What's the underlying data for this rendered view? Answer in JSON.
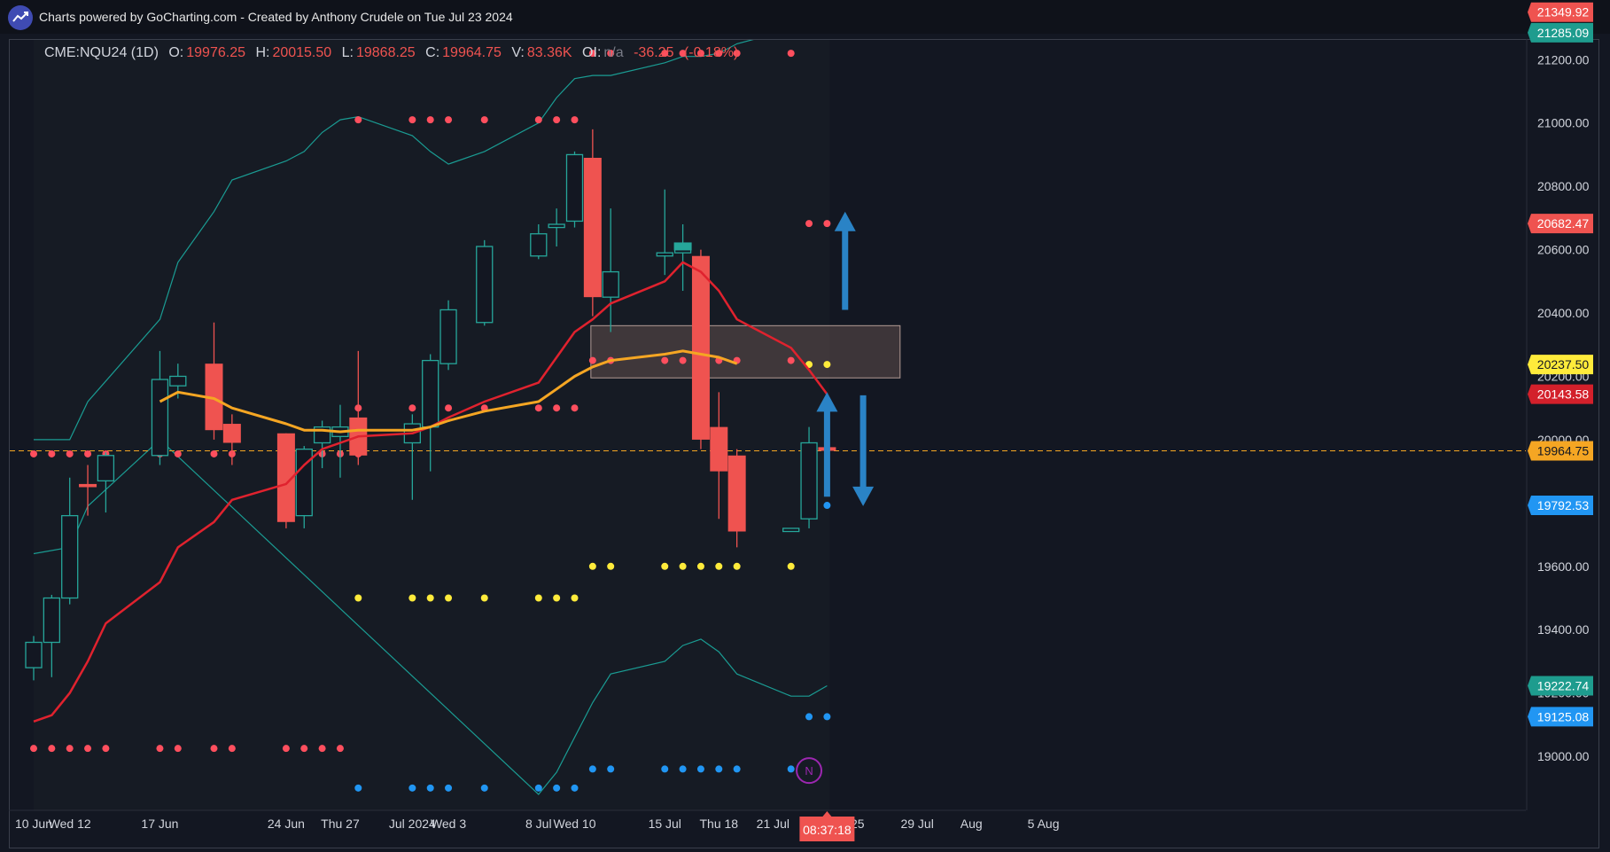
{
  "header": {
    "credit": "Charts powered by GoCharting.com - Created by Anthony Crudele on Tue Jul 23 2024"
  },
  "legend": {
    "symbol": "CME:NQU24 (1D)",
    "o_label": "O:",
    "o": "19976.25",
    "h_label": "H:",
    "h": "20015.50",
    "l_label": "L:",
    "l": "19868.25",
    "c_label": "C:",
    "c": "19964.75",
    "v_label": "V:",
    "v": "83.36K",
    "oi_label": "OI:",
    "oi": "n/a",
    "change": "-36.25",
    "change_pct": "(-0.18%)"
  },
  "colors": {
    "background": "#131722",
    "bull": "#26a69a",
    "bear": "#ef5350",
    "bollinger": "#1a9c93",
    "ma_red": "#e0222e",
    "ma_orange": "#f5a623",
    "dot_red": "#ff4f5e",
    "dot_yellow": "#ffeb3b",
    "dot_blue": "#2196f3",
    "zone": "#8c6d64",
    "arrow": "#2a83c6"
  },
  "chart_data": {
    "type": "candlestick",
    "symbol": "CME:NQU24",
    "interval": "1D",
    "ylim": [
      18880,
      21370
    ],
    "y_ticks": [
      19000,
      19200,
      19400,
      19600,
      19800,
      20000,
      20200,
      20400,
      20600,
      20800,
      21000,
      21200
    ],
    "y_tick_labels": [
      "19000.00",
      "19200.00",
      "19400.00",
      "19600.00",
      "19800.00",
      "20000.00",
      "20200.00",
      "20400.00",
      "20600.00",
      "20800.00",
      "21000.00",
      "21200.00"
    ],
    "x_ticks": [
      {
        "date": "2024-06-10",
        "label": "10 Jun"
      },
      {
        "date": "2024-06-12",
        "label": "Wed 12"
      },
      {
        "date": "2024-06-17",
        "label": "17 Jun"
      },
      {
        "date": "2024-06-24",
        "label": "24 Jun"
      },
      {
        "date": "2024-06-27",
        "label": "Thu 27"
      },
      {
        "date": "2024-07-01",
        "label": "Jul 2024"
      },
      {
        "date": "2024-07-03",
        "label": "Wed 3"
      },
      {
        "date": "2024-07-08",
        "label": "8 Jul"
      },
      {
        "date": "2024-07-10",
        "label": "Wed 10"
      },
      {
        "date": "2024-07-15",
        "label": "15 Jul"
      },
      {
        "date": "2024-07-18",
        "label": "Thu 18"
      },
      {
        "date": "2024-07-21",
        "label": "21 Jul"
      },
      {
        "date": "2024-07-25",
        "label": "Thu 25"
      },
      {
        "date": "2024-07-29",
        "label": "29 Jul"
      },
      {
        "date": "2024-08-01",
        "label": "Aug"
      },
      {
        "date": "2024-08-05",
        "label": "5 Aug"
      }
    ],
    "countdown_label": "08:37:18",
    "candles": [
      {
        "date": "2024-06-10",
        "o": 19280,
        "h": 19380,
        "l": 19240,
        "c": 19360
      },
      {
        "date": "2024-06-11",
        "o": 19360,
        "h": 19510,
        "l": 19250,
        "c": 19500
      },
      {
        "date": "2024-06-12",
        "o": 19500,
        "h": 19880,
        "l": 19480,
        "c": 19760
      },
      {
        "date": "2024-06-13",
        "o": 19860,
        "h": 19920,
        "l": 19760,
        "c": 19850
      },
      {
        "date": "2024-06-14",
        "o": 19870,
        "h": 19960,
        "l": 19770,
        "c": 19950
      },
      {
        "date": "2024-06-17",
        "o": 19950,
        "h": 20280,
        "l": 19920,
        "c": 20190
      },
      {
        "date": "2024-06-18",
        "o": 20170,
        "h": 20240,
        "l": 20130,
        "c": 20200
      },
      {
        "date": "2024-06-20",
        "o": 20240,
        "h": 20370,
        "l": 20000,
        "c": 20030
      },
      {
        "date": "2024-06-21",
        "o": 20050,
        "h": 20080,
        "l": 19920,
        "c": 19990
      },
      {
        "date": "2024-06-24",
        "o": 20020,
        "h": 20020,
        "l": 19720,
        "c": 19740
      },
      {
        "date": "2024-06-25",
        "o": 19760,
        "h": 19980,
        "l": 19720,
        "c": 19970
      },
      {
        "date": "2024-06-26",
        "o": 19990,
        "h": 20060,
        "l": 19910,
        "c": 20040
      },
      {
        "date": "2024-06-27",
        "o": 20010,
        "h": 20110,
        "l": 19880,
        "c": 20040
      },
      {
        "date": "2024-06-28",
        "o": 20070,
        "h": 20280,
        "l": 19920,
        "c": 19950
      },
      {
        "date": "2024-07-01",
        "o": 19990,
        "h": 20080,
        "l": 19810,
        "c": 20050
      },
      {
        "date": "2024-07-02",
        "o": 20040,
        "h": 20270,
        "l": 19900,
        "c": 20250
      },
      {
        "date": "2024-07-03",
        "o": 20240,
        "h": 20440,
        "l": 20220,
        "c": 20410
      },
      {
        "date": "2024-07-05",
        "o": 20370,
        "h": 20630,
        "l": 20360,
        "c": 20610
      },
      {
        "date": "2024-07-08",
        "o": 20580,
        "h": 20680,
        "l": 20570,
        "c": 20650
      },
      {
        "date": "2024-07-09",
        "o": 20670,
        "h": 20730,
        "l": 20610,
        "c": 20680
      },
      {
        "date": "2024-07-10",
        "o": 20690,
        "h": 20910,
        "l": 20670,
        "c": 20900
      },
      {
        "date": "2024-07-11",
        "o": 20890,
        "h": 20980,
        "l": 20390,
        "c": 20450
      },
      {
        "date": "2024-07-12",
        "o": 20450,
        "h": 20730,
        "l": 20340,
        "c": 20530
      },
      {
        "date": "2024-07-15",
        "o": 20580,
        "h": 20790,
        "l": 20520,
        "c": 20590
      },
      {
        "date": "2024-07-16",
        "o": 20590,
        "h": 20680,
        "l": 20470,
        "c": 20620
      },
      {
        "date": "2024-07-17",
        "o": 20580,
        "h": 20600,
        "l": 19970,
        "c": 20000
      },
      {
        "date": "2024-07-18",
        "o": 20040,
        "h": 20150,
        "l": 19750,
        "c": 19900
      },
      {
        "date": "2024-07-19",
        "o": 19950,
        "h": 19970,
        "l": 19660,
        "c": 19710
      },
      {
        "date": "2024-07-22",
        "o": 19710,
        "h": 19720,
        "l": 19710,
        "c": 19720
      },
      {
        "date": "2024-07-23",
        "o": 19750,
        "h": 20040,
        "l": 19720,
        "c": 19990
      },
      {
        "date": "2024-07-24",
        "o": 19976.25,
        "h": 20015.5,
        "l": 19868.25,
        "c": 19964.75
      }
    ],
    "ma_red": [
      {
        "date": "2024-06-10",
        "v": 19110
      },
      {
        "date": "2024-06-11",
        "v": 19130
      },
      {
        "date": "2024-06-12",
        "v": 19200
      },
      {
        "date": "2024-06-13",
        "v": 19300
      },
      {
        "date": "2024-06-14",
        "v": 19420
      },
      {
        "date": "2024-06-17",
        "v": 19550
      },
      {
        "date": "2024-06-18",
        "v": 19660
      },
      {
        "date": "2024-06-20",
        "v": 19740
      },
      {
        "date": "2024-06-21",
        "v": 19810
      },
      {
        "date": "2024-06-24",
        "v": 19860
      },
      {
        "date": "2024-06-25",
        "v": 19920
      },
      {
        "date": "2024-06-26",
        "v": 19970
      },
      {
        "date": "2024-06-27",
        "v": 19990
      },
      {
        "date": "2024-06-28",
        "v": 20010
      },
      {
        "date": "2024-07-01",
        "v": 20020
      },
      {
        "date": "2024-07-02",
        "v": 20040
      },
      {
        "date": "2024-07-03",
        "v": 20070
      },
      {
        "date": "2024-07-05",
        "v": 20120
      },
      {
        "date": "2024-07-08",
        "v": 20180
      },
      {
        "date": "2024-07-09",
        "v": 20260
      },
      {
        "date": "2024-07-10",
        "v": 20340
      },
      {
        "date": "2024-07-11",
        "v": 20380
      },
      {
        "date": "2024-07-12",
        "v": 20430
      },
      {
        "date": "2024-07-15",
        "v": 20500
      },
      {
        "date": "2024-07-16",
        "v": 20560
      },
      {
        "date": "2024-07-17",
        "v": 20530
      },
      {
        "date": "2024-07-18",
        "v": 20470
      },
      {
        "date": "2024-07-19",
        "v": 20380
      },
      {
        "date": "2024-07-22",
        "v": 20290
      },
      {
        "date": "2024-07-23",
        "v": 20220
      },
      {
        "date": "2024-07-24",
        "v": 20143.58
      }
    ],
    "ma_orange": [
      {
        "date": "2024-06-17",
        "v": 20120
      },
      {
        "date": "2024-06-18",
        "v": 20150
      },
      {
        "date": "2024-06-20",
        "v": 20130
      },
      {
        "date": "2024-06-21",
        "v": 20100
      },
      {
        "date": "2024-06-24",
        "v": 20050
      },
      {
        "date": "2024-06-25",
        "v": 20030
      },
      {
        "date": "2024-06-26",
        "v": 20030
      },
      {
        "date": "2024-06-27",
        "v": 20025
      },
      {
        "date": "2024-06-28",
        "v": 20030
      },
      {
        "date": "2024-07-01",
        "v": 20030
      },
      {
        "date": "2024-07-02",
        "v": 20040
      },
      {
        "date": "2024-07-03",
        "v": 20060
      },
      {
        "date": "2024-07-05",
        "v": 20090
      },
      {
        "date": "2024-07-08",
        "v": 20120
      },
      {
        "date": "2024-07-09",
        "v": 20160
      },
      {
        "date": "2024-07-10",
        "v": 20200
      },
      {
        "date": "2024-07-11",
        "v": 20230
      },
      {
        "date": "2024-07-12",
        "v": 20250
      },
      {
        "date": "2024-07-15",
        "v": 20270
      },
      {
        "date": "2024-07-16",
        "v": 20280
      },
      {
        "date": "2024-07-17",
        "v": 20270
      },
      {
        "date": "2024-07-18",
        "v": 20260
      },
      {
        "date": "2024-07-19",
        "v": 20240
      }
    ],
    "bb_upper": [
      {
        "date": "2024-06-10",
        "v": 20000
      },
      {
        "date": "2024-06-12",
        "v": 20000
      },
      {
        "date": "2024-06-13",
        "v": 20120
      },
      {
        "date": "2024-06-17",
        "v": 20380
      },
      {
        "date": "2024-06-18",
        "v": 20560
      },
      {
        "date": "2024-06-20",
        "v": 20720
      },
      {
        "date": "2024-06-21",
        "v": 20820
      },
      {
        "date": "2024-06-24",
        "v": 20880
      },
      {
        "date": "2024-06-25",
        "v": 20910
      },
      {
        "date": "2024-06-26",
        "v": 20970
      },
      {
        "date": "2024-06-27",
        "v": 21010
      },
      {
        "date": "2024-06-28",
        "v": 21020
      },
      {
        "date": "2024-07-01",
        "v": 20960
      },
      {
        "date": "2024-07-02",
        "v": 20910
      },
      {
        "date": "2024-07-03",
        "v": 20870
      },
      {
        "date": "2024-07-05",
        "v": 20910
      },
      {
        "date": "2024-07-08",
        "v": 21000
      },
      {
        "date": "2024-07-09",
        "v": 21080
      },
      {
        "date": "2024-07-10",
        "v": 21140
      },
      {
        "date": "2024-07-11",
        "v": 21150
      },
      {
        "date": "2024-07-12",
        "v": 21150
      },
      {
        "date": "2024-07-15",
        "v": 21190
      },
      {
        "date": "2024-07-16",
        "v": 21210
      },
      {
        "date": "2024-07-17",
        "v": 21210
      },
      {
        "date": "2024-07-18",
        "v": 21220
      },
      {
        "date": "2024-07-19",
        "v": 21250
      },
      {
        "date": "2024-07-22",
        "v": 21295
      },
      {
        "date": "2024-07-23",
        "v": 21295
      },
      {
        "date": "2024-07-24",
        "v": 21285.09
      }
    ],
    "bb_lower": [
      {
        "date": "2024-06-10",
        "v": 19640
      },
      {
        "date": "2024-06-12",
        "v": 19660
      },
      {
        "date": "2024-06-13",
        "v": 19790
      },
      {
        "date": "2024-06-17",
        "v": 20000
      },
      {
        "date": "2024-07-08",
        "v": 18880
      },
      {
        "date": "2024-07-09",
        "v": 18950
      },
      {
        "date": "2024-07-10",
        "v": 19060
      },
      {
        "date": "2024-07-11",
        "v": 19170
      },
      {
        "date": "2024-07-12",
        "v": 19260
      },
      {
        "date": "2024-07-15",
        "v": 19300
      },
      {
        "date": "2024-07-16",
        "v": 19350
      },
      {
        "date": "2024-07-17",
        "v": 19370
      },
      {
        "date": "2024-07-18",
        "v": 19330
      },
      {
        "date": "2024-07-19",
        "v": 19260
      },
      {
        "date": "2024-07-22",
        "v": 19190
      },
      {
        "date": "2024-07-23",
        "v": 19190
      },
      {
        "date": "2024-07-24",
        "v": 19222.74
      }
    ],
    "dot_levels": [
      {
        "color": "red",
        "value": 19955,
        "from": "2024-06-10",
        "to": "2024-06-28"
      },
      {
        "color": "red",
        "value": 19025,
        "from": "2024-06-10",
        "to": "2024-06-27"
      },
      {
        "color": "red",
        "value": 21010,
        "from": "2024-06-28",
        "to": "2024-07-10"
      },
      {
        "color": "red",
        "value": 20100,
        "from": "2024-06-28",
        "to": "2024-07-10"
      },
      {
        "color": "yellow",
        "value": 19500,
        "from": "2024-06-28",
        "to": "2024-07-10"
      },
      {
        "color": "blue",
        "value": 18900,
        "from": "2024-06-28",
        "to": "2024-07-10"
      },
      {
        "color": "red",
        "value": 21220,
        "from": "2024-07-11",
        "to": "2024-07-22"
      },
      {
        "color": "red",
        "value": 20250,
        "from": "2024-07-11",
        "to": "2024-07-22"
      },
      {
        "color": "yellow",
        "value": 19600,
        "from": "2024-07-11",
        "to": "2024-07-22"
      },
      {
        "color": "blue",
        "value": 18960,
        "from": "2024-07-11",
        "to": "2024-07-22"
      },
      {
        "color": "red",
        "value": 21349.92,
        "from": "2024-07-23",
        "to": "2024-07-24"
      },
      {
        "color": "red",
        "value": 20682.47,
        "from": "2024-07-23",
        "to": "2024-07-24"
      },
      {
        "color": "yellow",
        "value": 20237.5,
        "from": "2024-07-23",
        "to": "2024-07-24"
      },
      {
        "color": "blue",
        "value": 19792.53,
        "from": "2024-07-23",
        "to": "2024-07-24"
      },
      {
        "color": "blue",
        "value": 19125.08,
        "from": "2024-07-23",
        "to": "2024-07-24"
      }
    ],
    "zone": {
      "from": "2024-07-11",
      "to": "2024-07-28",
      "low": 20195,
      "high": 20360
    },
    "current_price": 19964.75,
    "arrows": [
      {
        "date": "2024-07-25",
        "from": 20410,
        "to": 20720,
        "direction": "up"
      },
      {
        "date": "2024-07-24",
        "from": 19820,
        "to": 20150,
        "direction": "up"
      },
      {
        "date": "2024-07-26",
        "from": 20140,
        "to": 19790,
        "direction": "down"
      }
    ],
    "marker": {
      "date": "2024-07-23",
      "value": 18955,
      "label": "N"
    },
    "price_labels": [
      {
        "value": 21349.92,
        "text": "21349.92",
        "color": "red"
      },
      {
        "value": 21285.09,
        "text": "21285.09",
        "color": "teal"
      },
      {
        "value": 20682.47,
        "text": "20682.47",
        "color": "red"
      },
      {
        "value": 20237.5,
        "text": "20237.50",
        "color": "yellow"
      },
      {
        "value": 20143.58,
        "text": "20143.58",
        "color": "darkred"
      },
      {
        "value": 19964.75,
        "text": "19964.75",
        "color": "orange"
      },
      {
        "value": 19792.53,
        "text": "19792.53",
        "color": "blue"
      },
      {
        "value": 19222.74,
        "text": "19222.74",
        "color": "teal"
      },
      {
        "value": 19125.08,
        "text": "19125.08",
        "color": "blue"
      }
    ]
  }
}
